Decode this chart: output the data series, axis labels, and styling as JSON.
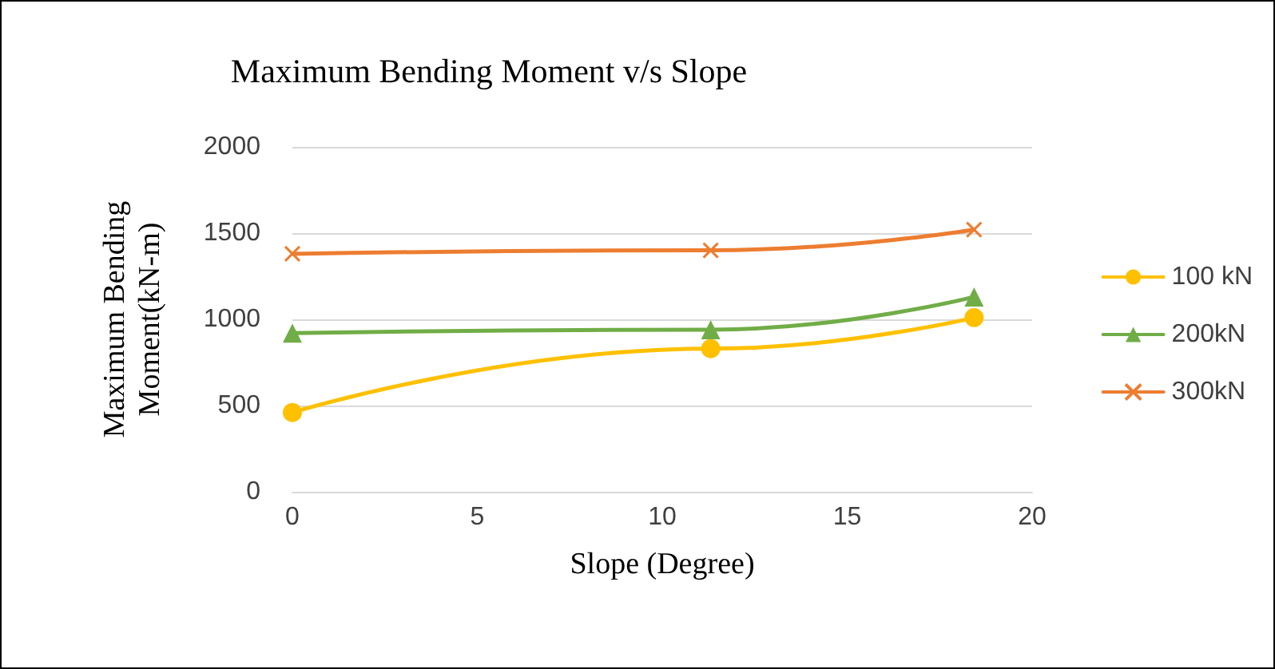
{
  "chart_data": {
    "type": "line",
    "title": "Maximum Bending Moment v/s Slope",
    "xlabel": "Slope (Degree)",
    "ylabel": "Maximum Bending Moment(kN-m)",
    "xlim": [
      0,
      20
    ],
    "xticks": [
      0,
      5,
      10,
      15,
      20
    ],
    "ylim": [
      0,
      2000
    ],
    "yticks": [
      0,
      500,
      1000,
      1500,
      2000
    ],
    "grid": "y",
    "legend": "right",
    "series": [
      {
        "name": "100 kN",
        "color": "#ffc000",
        "marker": "circle",
        "x": [
          0,
          11.31,
          18.43
        ],
        "values": [
          460,
          830,
          1010
        ]
      },
      {
        "name": "200kN",
        "color": "#70ad47",
        "marker": "triangle",
        "x": [
          0,
          11.31,
          18.43
        ],
        "values": [
          920,
          940,
          1130
        ]
      },
      {
        "name": "300kN",
        "color": "#ed7d31",
        "marker": "cross",
        "x": [
          0,
          11.31,
          18.43
        ],
        "values": [
          1380,
          1400,
          1520
        ]
      }
    ]
  }
}
